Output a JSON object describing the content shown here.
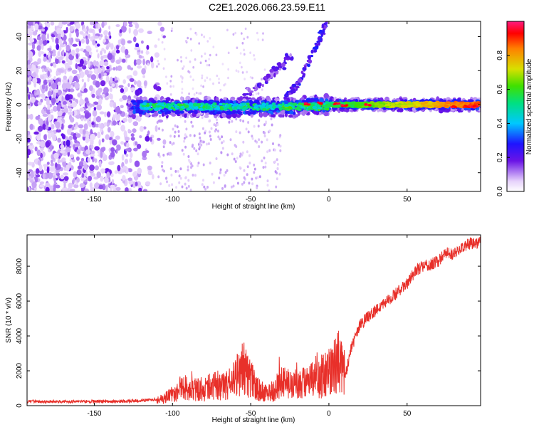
{
  "title": "C2E1.2026.066.23.59.E11",
  "chart_data": [
    {
      "type": "heatmap",
      "xlabel": "Height of straight line (km)",
      "ylabel": "Frequency (Hz)",
      "xlim": [
        -193,
        97
      ],
      "ylim": [
        -51,
        49
      ],
      "xticks": [
        -150,
        -100,
        -50,
        0,
        50
      ],
      "yticks": [
        -40,
        -20,
        0,
        20,
        40
      ],
      "xtick_labels": [
        "-150",
        "-100",
        "-50",
        "0",
        "50"
      ],
      "ytick_labels": [
        "-40",
        "-20",
        "0",
        "20",
        "40"
      ],
      "colorbar": {
        "label": "Normalized spectral amplitude",
        "range": [
          0,
          1
        ],
        "ticks": [
          0.0,
          0.2,
          0.4,
          0.6,
          0.8
        ],
        "tick_labels": [
          "0.0",
          "0.2",
          "0.4",
          "0.6",
          "0.8"
        ]
      },
      "features": {
        "noise_region_x": [
          -193,
          -110
        ],
        "main_band_center_hz": 0,
        "main_band_x": [
          -128,
          97
        ],
        "curved_branch": [
          [
            -28,
            4
          ],
          [
            -20,
            12
          ],
          [
            -14,
            23
          ],
          [
            -9,
            33
          ],
          [
            -5,
            41
          ],
          [
            -2,
            48
          ]
        ],
        "streak_branch": [
          [
            -55,
            6
          ],
          [
            -45,
            12
          ],
          [
            -36,
            18
          ],
          [
            -30,
            23
          ],
          [
            -25,
            29
          ]
        ]
      }
    },
    {
      "type": "line",
      "xlabel": "Height of straight line (km)",
      "ylabel": "SNR (10 * v/v)",
      "xlim": [
        -193,
        97
      ],
      "ylim": [
        0,
        9800
      ],
      "xticks": [
        -150,
        -100,
        -50,
        0,
        50
      ],
      "yticks": [
        0,
        2000,
        4000,
        6000,
        8000
      ],
      "xtick_labels": [
        "-150",
        "-100",
        "-50",
        "0",
        "50"
      ],
      "ytick_labels": [
        "0",
        "2000",
        "4000",
        "6000",
        "8000"
      ],
      "color": "#e8302a",
      "series": [
        {
          "name": "SNR",
          "x": [
            -193,
            -170,
            -150,
            -130,
            -115,
            -105,
            -100,
            -95,
            -85,
            -75,
            -65,
            -58,
            -55,
            -50,
            -45,
            -40,
            -35,
            -30,
            -25,
            -20,
            -15,
            -10,
            -5,
            0,
            5,
            8,
            10,
            13,
            15,
            20,
            25,
            30,
            35,
            40,
            45,
            50,
            55,
            60,
            65,
            70,
            75,
            80,
            85,
            90,
            97
          ],
          "y": [
            230,
            240,
            240,
            250,
            320,
            420,
            650,
            1050,
            950,
            900,
            1150,
            1800,
            2200,
            1500,
            900,
            700,
            900,
            1350,
            1300,
            1250,
            1300,
            1450,
            1650,
            1950,
            2350,
            2600,
            1400,
            2800,
            3500,
            4600,
            5100,
            5450,
            5900,
            6200,
            6600,
            7000,
            7700,
            8000,
            8100,
            8300,
            8800,
            8700,
            9050,
            9300,
            9400
          ]
        }
      ]
    }
  ]
}
